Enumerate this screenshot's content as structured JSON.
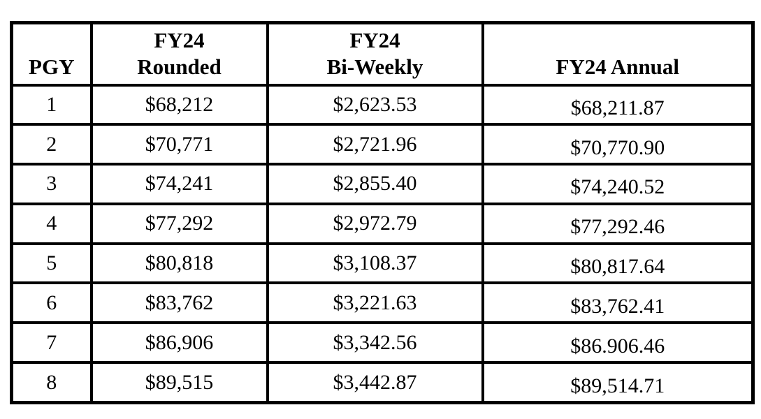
{
  "colors": {
    "border": "#000000",
    "text": "#000000",
    "background": "#ffffff"
  },
  "table": {
    "columns": [
      {
        "id": "pgy",
        "label_lines": [
          "PGY"
        ]
      },
      {
        "id": "rounded",
        "label_lines": [
          "FY24",
          "Rounded"
        ]
      },
      {
        "id": "biweekly",
        "label_lines": [
          "FY24",
          "Bi-Weekly"
        ]
      },
      {
        "id": "annual",
        "label_lines": [
          "FY24 Annual"
        ]
      }
    ],
    "rows": [
      {
        "pgy": "1",
        "rounded": "$68,212",
        "biweekly": "$2,623.53",
        "annual": "$68,211.87"
      },
      {
        "pgy": "2",
        "rounded": "$70,771",
        "biweekly": "$2,721.96",
        "annual": "$70,770.90"
      },
      {
        "pgy": "3",
        "rounded": "$74,241",
        "biweekly": "$2,855.40",
        "annual": "$74,240.52"
      },
      {
        "pgy": "4",
        "rounded": "$77,292",
        "biweekly": "$2,972.79",
        "annual": "$77,292.46"
      },
      {
        "pgy": "5",
        "rounded": "$80,818",
        "biweekly": "$3,108.37",
        "annual": "$80,817.64"
      },
      {
        "pgy": "6",
        "rounded": "$83,762",
        "biweekly": "$3,221.63",
        "annual": "$83,762.41"
      },
      {
        "pgy": "7",
        "rounded": "$86,906",
        "biweekly": "$3,342.56",
        "annual": "$86.906.46"
      },
      {
        "pgy": "8",
        "rounded": "$89,515",
        "biweekly": "$3,442.87",
        "annual": "$89,514.71"
      }
    ]
  }
}
